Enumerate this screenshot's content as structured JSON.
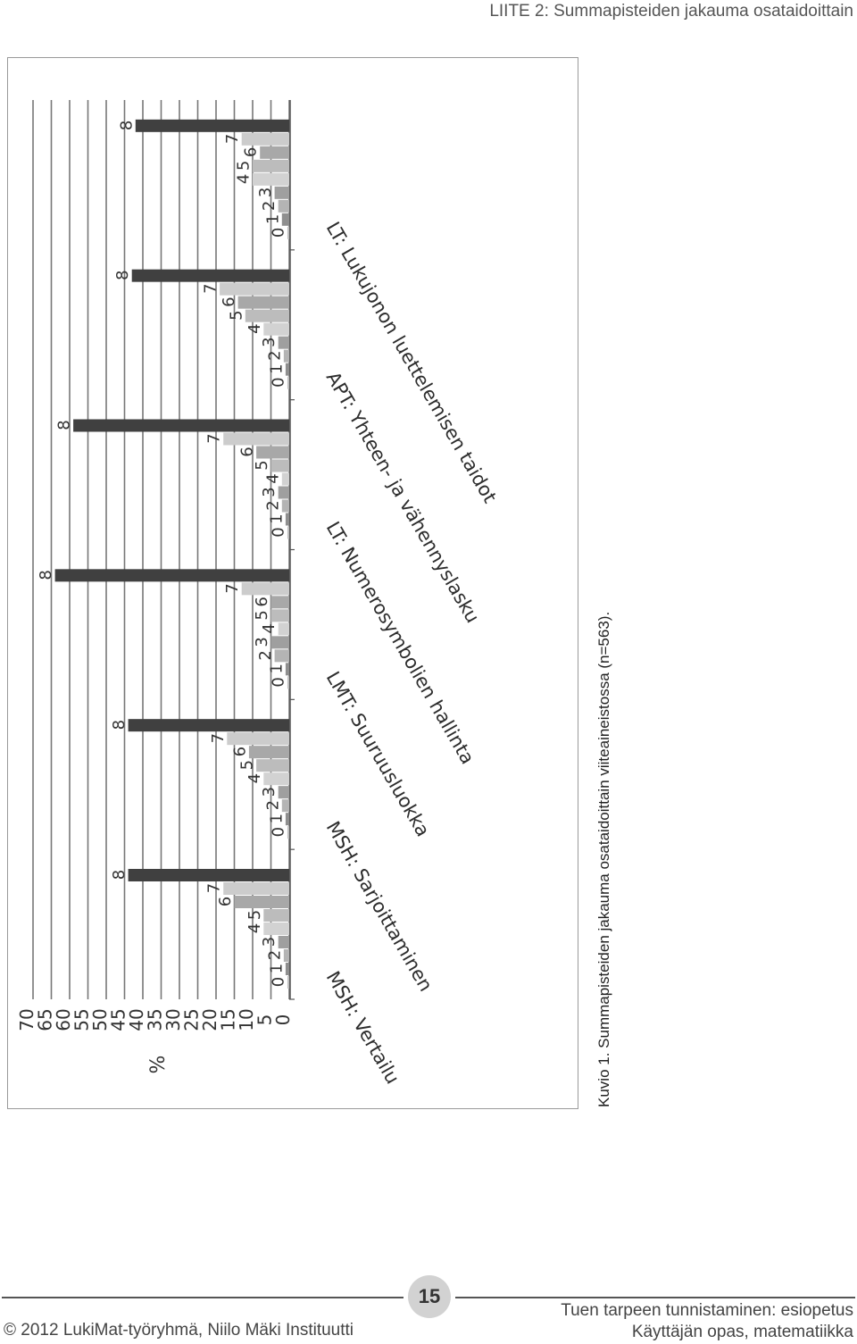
{
  "header": {
    "title": "LIITE 2: Summapisteiden jakauma osataidoittain"
  },
  "caption": "Kuvio 1. Summapisteiden jakauma osataidoittain viiteaineistossa (n=563).",
  "footer": {
    "page_number": "15",
    "copyright": "© 2012 LukiMat-työryhmä, Niilo Mäki Instituutti",
    "right_line1": "Tuen tarpeen tunnistaminen: esiopetus",
    "right_line2": "Käyttäjän opas, matematiikka"
  },
  "chart_data": {
    "type": "bar",
    "orientation": "rotated -90deg (page printed sideways)",
    "ylabel": "%",
    "ylim": [
      0,
      70
    ],
    "yticks": [
      0,
      5,
      10,
      15,
      20,
      25,
      30,
      35,
      40,
      45,
      50,
      55,
      60,
      65,
      70
    ],
    "grid": true,
    "bar_colors": [
      "#c0c0c0",
      "#8f8f8f",
      "#b4b4b4",
      "#9f9f9f",
      "#d2d2d2",
      "#bcbcbc",
      "#a8a8a8",
      "#cccccc",
      "#404040",
      "#8a8a8a",
      "#c6c6c6",
      "#5a5a5a",
      "#7a7a7a"
    ],
    "groups": [
      {
        "name": "MSH: Vertailu",
        "bars": [
          {
            "label": "0",
            "value": 0.5
          },
          {
            "label": "1",
            "value": 1
          },
          {
            "label": "2",
            "value": 1.5
          },
          {
            "label": "3",
            "value": 3
          },
          {
            "label": "4",
            "value": 7
          },
          {
            "label": "5",
            "value": 7
          },
          {
            "label": "6",
            "value": 15
          },
          {
            "label": "7",
            "value": 18
          },
          {
            "label": "8",
            "value": 44
          }
        ]
      },
      {
        "name": "MSH: Sarjoittaminen",
        "bars": [
          {
            "label": "0",
            "value": 0.5
          },
          {
            "label": "1",
            "value": 1
          },
          {
            "label": "2",
            "value": 2
          },
          {
            "label": "3",
            "value": 3
          },
          {
            "label": "4",
            "value": 7
          },
          {
            "label": "5",
            "value": 9
          },
          {
            "label": "6",
            "value": 11
          },
          {
            "label": "7",
            "value": 17
          },
          {
            "label": "8",
            "value": 44
          }
        ]
      },
      {
        "name": "LMT: Suuruusluokka",
        "bars": [
          {
            "label": "0",
            "value": 0.5
          },
          {
            "label": "1",
            "value": 1
          },
          {
            "label": "2",
            "value": 4
          },
          {
            "label": "3",
            "value": 5
          },
          {
            "label": "4",
            "value": 3
          },
          {
            "label": "5",
            "value": 5
          },
          {
            "label": "6",
            "value": 5
          },
          {
            "label": "7",
            "value": 13
          },
          {
            "label": "8",
            "value": 64
          }
        ]
      },
      {
        "name": "LT: Numerosymbolien hallinta",
        "bars": [
          {
            "label": "0",
            "value": 0.5
          },
          {
            "label": "1",
            "value": 1
          },
          {
            "label": "2",
            "value": 2
          },
          {
            "label": "3",
            "value": 3
          },
          {
            "label": "4",
            "value": 2
          },
          {
            "label": "5",
            "value": 5
          },
          {
            "label": "6",
            "value": 9
          },
          {
            "label": "7",
            "value": 18
          },
          {
            "label": "8",
            "value": 59
          }
        ]
      },
      {
        "name": "APT: Yhteen- ja vähennyslasku",
        "bars": [
          {
            "label": "0",
            "value": 0.5
          },
          {
            "label": "1",
            "value": 1
          },
          {
            "label": "2",
            "value": 1.5
          },
          {
            "label": "3",
            "value": 3
          },
          {
            "label": "4",
            "value": 7
          },
          {
            "label": "5",
            "value": 12
          },
          {
            "label": "6",
            "value": 14
          },
          {
            "label": "7",
            "value": 19
          },
          {
            "label": "8",
            "value": 43
          }
        ]
      },
      {
        "name": "LT: Lukujonon luettelemisen taidot",
        "bars": [
          {
            "label": "0",
            "value": 0.5
          },
          {
            "label": "1",
            "value": 2
          },
          {
            "label": "2",
            "value": 3
          },
          {
            "label": "3",
            "value": 4
          },
          {
            "label": "4",
            "value": 10
          },
          {
            "label": "5",
            "value": 10
          },
          {
            "label": "6",
            "value": 8
          },
          {
            "label": "7",
            "value": 13
          },
          {
            "label": "8",
            "value": 42
          }
        ]
      }
    ]
  }
}
